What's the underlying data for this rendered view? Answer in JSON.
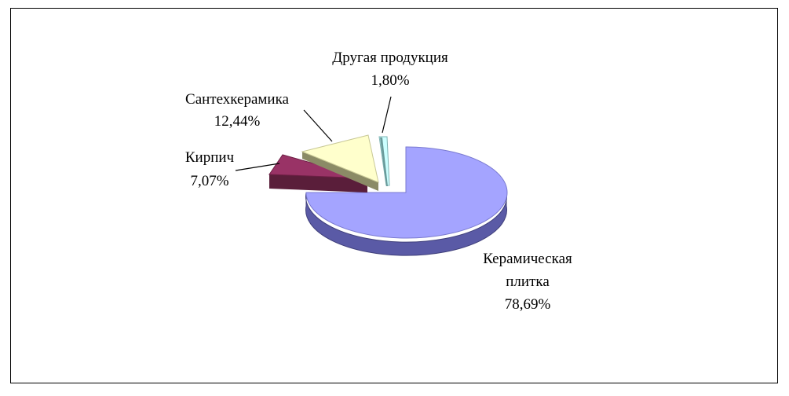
{
  "chart_data": {
    "type": "pie",
    "title": "",
    "series": [
      {
        "name": "",
        "values": [
          {
            "label": "Керамическая плитка",
            "value": 78.69,
            "display": "78,69%",
            "color": "#a4a4ff"
          },
          {
            "label": "Кирпич",
            "value": 7.07,
            "display": "7,07%",
            "color": "#993366"
          },
          {
            "label": "Сантехкерамика",
            "value": 12.44,
            "display": "12,44%",
            "color": "#ffffcc"
          },
          {
            "label": "Другая продукция",
            "value": 1.8,
            "display": "1,80%",
            "color": "#ccffff"
          }
        ]
      }
    ],
    "labels": {
      "ceramic_tile_line1": "Керамическая",
      "ceramic_tile_line2": "плитка",
      "ceramic_tile_pct": "78,69%",
      "brick": "Кирпич",
      "brick_pct": "7,07%",
      "sanitary": "Сантехкерамика",
      "sanitary_pct": "12,44%",
      "other": "Другая продукция",
      "other_pct": "1,80%"
    },
    "legend": "none",
    "style": "3d-exploded-pie"
  }
}
